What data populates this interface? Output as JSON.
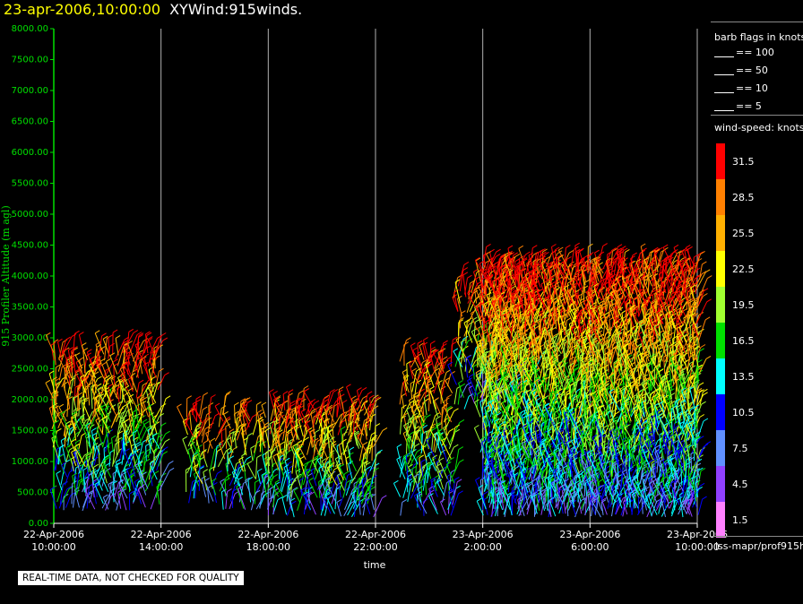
{
  "header": {
    "date": "23-apr-2006,10:00:00",
    "name": "XYWind:915winds."
  },
  "notice": "REAL-TIME DATA, NOT CHECKED FOR QUALITY",
  "source": "iss-mapr/prof915h",
  "colors": {
    "axis": "#00e000",
    "grid": "#b0b0b0",
    "title_date": "#ffff00"
  },
  "chart_data": {
    "type": "scatter",
    "title": "",
    "xlabel": "time",
    "ylabel": "915 Profiler Altitude (m agl)",
    "ylim": [
      0,
      8000
    ],
    "y_ticks": [
      "0.00",
      "500.00",
      "1000.00",
      "1500.00",
      "2000.00",
      "2500.00",
      "3000.00",
      "3500.00",
      "4000.00",
      "4500.00",
      "5000.00",
      "5500.00",
      "6000.00",
      "6500.00",
      "7000.00",
      "7500.00",
      "8000.00"
    ],
    "x_ticks": [
      {
        "date": "22-Apr-2006",
        "time": "10:00:00"
      },
      {
        "date": "22-Apr-2006",
        "time": "14:00:00"
      },
      {
        "date": "22-Apr-2006",
        "time": "18:00:00"
      },
      {
        "date": "22-Apr-2006",
        "time": "22:00:00"
      },
      {
        "date": "23-Apr-2006",
        "time": "2:00:00"
      },
      {
        "date": "23-Apr-2006",
        "time": "6:00:00"
      },
      {
        "date": "23-Apr-2006",
        "time": "10:00:00"
      }
    ],
    "grid": "vertical",
    "barb_legend": {
      "title": "barb flags in knots",
      "items": [
        "== 100",
        "== 50",
        "== 10",
        "== 5"
      ]
    },
    "colorbar": {
      "title": "wind-speed: knots",
      "levels": [
        "31.5",
        "28.5",
        "25.5",
        "22.5",
        "19.5",
        "16.5",
        "13.5",
        "10.5",
        "7.5",
        "4.5",
        "1.5"
      ],
      "colors": [
        "#ff0000",
        "#ff8000",
        "#ffb000",
        "#ffff00",
        "#a0ff30",
        "#00e000",
        "#00ffff",
        "#0000ff",
        "#6090ff",
        "#9040ff",
        "#ff80ff"
      ]
    },
    "series": [
      {
        "hours": [
          0,
          1,
          2,
          3
        ],
        "top": 2800,
        "base": 200,
        "density": 0.55
      },
      {
        "hours": [
          5,
          6,
          7
        ],
        "top": 1800,
        "base": 200,
        "density": 0.4
      },
      {
        "hours": [
          8,
          9,
          10,
          11
        ],
        "top": 1900,
        "base": 100,
        "density": 0.6
      },
      {
        "hours": [
          13,
          14
        ],
        "top": 2700,
        "base": 100,
        "density": 0.5
      },
      {
        "hours": [
          15,
          16,
          17
        ],
        "top": 3900,
        "base": 1800,
        "density": 0.35
      },
      {
        "hours": [
          16,
          17,
          18,
          19,
          20,
          21,
          22,
          23,
          24
        ],
        "top": 4200,
        "base": 100,
        "density": 1.0
      }
    ]
  }
}
